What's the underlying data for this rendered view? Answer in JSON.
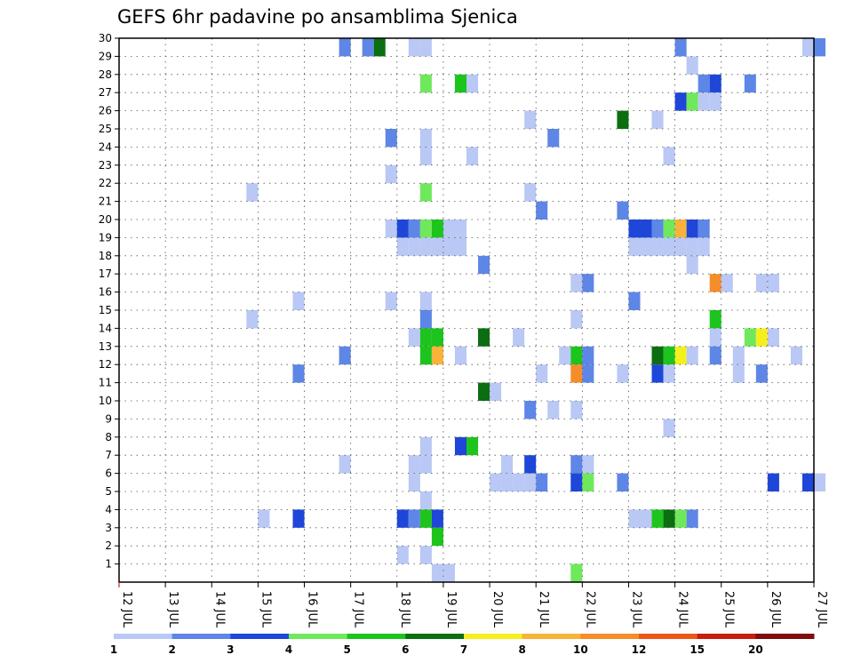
{
  "chart_data": {
    "type": "heatmap",
    "title": "GEFS 6hr padavine po ansamblima Sjenica",
    "x_tick_labels": [
      "12 JUL",
      "13 JUL",
      "14 JUL",
      "15 JUL",
      "16 JUL",
      "17 JUL",
      "18 JUL",
      "19 JUL",
      "20 JUL",
      "21 JUL",
      "22 JUL",
      "23 JUL",
      "24 JUL",
      "25 JUL",
      "26 JUL",
      "27 JUL"
    ],
    "y_tick_labels": [
      "1",
      "2",
      "3",
      "4",
      "5",
      "6",
      "7",
      "8",
      "9",
      "10",
      "11",
      "12",
      "13",
      "14",
      "15",
      "16",
      "17",
      "18",
      "19",
      "20",
      "21",
      "22",
      "23",
      "24",
      "25",
      "26",
      "27",
      "28",
      "29",
      "30"
    ],
    "xlim": [
      12,
      27
    ],
    "ylim": [
      0,
      30
    ],
    "grid": true,
    "legend": {
      "position": "bottom",
      "labels": [
        "1",
        "2",
        "3",
        "4",
        "5",
        "6",
        "7",
        "8",
        "10",
        "12",
        "15",
        "20"
      ],
      "colors": [
        "#b9c8f4",
        "#5e86e6",
        "#1e46d8",
        "#6fe85c",
        "#1dc41d",
        "#0b6e10",
        "#f4f01e",
        "#f7b33a",
        "#f58d2a",
        "#eb5716",
        "#c81c0c",
        "#7e0e0e"
      ]
    },
    "cells": [
      {
        "day": 16.75,
        "member": 30,
        "level": 2
      },
      {
        "day": 17.25,
        "member": 30,
        "level": 2
      },
      {
        "day": 17.5,
        "member": 30,
        "level": 6
      },
      {
        "day": 18.25,
        "member": 30,
        "level": 1
      },
      {
        "day": 18.5,
        "member": 30,
        "level": 1
      },
      {
        "day": 24,
        "member": 30,
        "level": 2
      },
      {
        "day": 26.75,
        "member": 30,
        "level": 1
      },
      {
        "day": 27,
        "member": 30,
        "level": 2
      },
      {
        "day": 24.25,
        "member": 29,
        "level": 1
      },
      {
        "day": 18.5,
        "member": 28,
        "level": 4
      },
      {
        "day": 19.25,
        "member": 28,
        "level": 5
      },
      {
        "day": 19.5,
        "member": 28,
        "level": 1
      },
      {
        "day": 24.5,
        "member": 28,
        "level": 2
      },
      {
        "day": 24.75,
        "member": 28,
        "level": 3
      },
      {
        "day": 25.5,
        "member": 28,
        "level": 2
      },
      {
        "day": 24,
        "member": 27,
        "level": 3
      },
      {
        "day": 24.25,
        "member": 27,
        "level": 4
      },
      {
        "day": 24.5,
        "member": 27,
        "level": 1
      },
      {
        "day": 24.75,
        "member": 27,
        "level": 1
      },
      {
        "day": 20.75,
        "member": 26,
        "level": 1
      },
      {
        "day": 22.75,
        "member": 26,
        "level": 6
      },
      {
        "day": 23.5,
        "member": 26,
        "level": 1
      },
      {
        "day": 17.75,
        "member": 25,
        "level": 2
      },
      {
        "day": 18.5,
        "member": 25,
        "level": 1
      },
      {
        "day": 21.25,
        "member": 25,
        "level": 2
      },
      {
        "day": 18.5,
        "member": 24,
        "level": 1
      },
      {
        "day": 19.5,
        "member": 24,
        "level": 1
      },
      {
        "day": 23.75,
        "member": 24,
        "level": 1
      },
      {
        "day": 17.75,
        "member": 23,
        "level": 1
      },
      {
        "day": 14.75,
        "member": 22,
        "level": 1
      },
      {
        "day": 18.5,
        "member": 22,
        "level": 4
      },
      {
        "day": 20.75,
        "member": 22,
        "level": 1
      },
      {
        "day": 21,
        "member": 21,
        "level": 2
      },
      {
        "day": 22.75,
        "member": 21,
        "level": 2
      },
      {
        "day": 17.75,
        "member": 20,
        "level": 1
      },
      {
        "day": 18,
        "member": 20,
        "level": 3
      },
      {
        "day": 18.25,
        "member": 20,
        "level": 2
      },
      {
        "day": 18.5,
        "member": 20,
        "level": 4
      },
      {
        "day": 18.75,
        "member": 20,
        "level": 5
      },
      {
        "day": 19,
        "member": 20,
        "level": 1
      },
      {
        "day": 19.25,
        "member": 20,
        "level": 1
      },
      {
        "day": 23,
        "member": 20,
        "level": 3
      },
      {
        "day": 23.25,
        "member": 20,
        "level": 3
      },
      {
        "day": 23.5,
        "member": 20,
        "level": 2
      },
      {
        "day": 23.75,
        "member": 20,
        "level": 4
      },
      {
        "day": 24,
        "member": 20,
        "level": 8
      },
      {
        "day": 24.25,
        "member": 20,
        "level": 3
      },
      {
        "day": 24.5,
        "member": 20,
        "level": 2
      },
      {
        "day": 18,
        "member": 19,
        "level": 1
      },
      {
        "day": 18.25,
        "member": 19,
        "level": 1
      },
      {
        "day": 18.5,
        "member": 19,
        "level": 1
      },
      {
        "day": 18.75,
        "member": 19,
        "level": 1
      },
      {
        "day": 19,
        "member": 19,
        "level": 1
      },
      {
        "day": 19.25,
        "member": 19,
        "level": 1
      },
      {
        "day": 23,
        "member": 19,
        "level": 1
      },
      {
        "day": 23.25,
        "member": 19,
        "level": 1
      },
      {
        "day": 23.5,
        "member": 19,
        "level": 1
      },
      {
        "day": 23.75,
        "member": 19,
        "level": 1
      },
      {
        "day": 24,
        "member": 19,
        "level": 1
      },
      {
        "day": 24.25,
        "member": 19,
        "level": 1
      },
      {
        "day": 24.5,
        "member": 19,
        "level": 1
      },
      {
        "day": 19.75,
        "member": 18,
        "level": 2
      },
      {
        "day": 24.25,
        "member": 18,
        "level": 1
      },
      {
        "day": 21.75,
        "member": 17,
        "level": 1
      },
      {
        "day": 22,
        "member": 17,
        "level": 2
      },
      {
        "day": 24.75,
        "member": 17,
        "level": 9
      },
      {
        "day": 25,
        "member": 17,
        "level": 1
      },
      {
        "day": 25.75,
        "member": 17,
        "level": 1
      },
      {
        "day": 26,
        "member": 17,
        "level": 1
      },
      {
        "day": 15.75,
        "member": 16,
        "level": 1
      },
      {
        "day": 17.75,
        "member": 16,
        "level": 1
      },
      {
        "day": 18.5,
        "member": 16,
        "level": 1
      },
      {
        "day": 23,
        "member": 16,
        "level": 2
      },
      {
        "day": 14.75,
        "member": 15,
        "level": 1
      },
      {
        "day": 18.5,
        "member": 15,
        "level": 2
      },
      {
        "day": 21.75,
        "member": 15,
        "level": 1
      },
      {
        "day": 24.75,
        "member": 15,
        "level": 5
      },
      {
        "day": 18.25,
        "member": 14,
        "level": 1
      },
      {
        "day": 18.5,
        "member": 14,
        "level": 5
      },
      {
        "day": 18.75,
        "member": 14,
        "level": 5
      },
      {
        "day": 19.75,
        "member": 14,
        "level": 6
      },
      {
        "day": 20.5,
        "member": 14,
        "level": 1
      },
      {
        "day": 24.75,
        "member": 14,
        "level": 1
      },
      {
        "day": 25.5,
        "member": 14,
        "level": 4
      },
      {
        "day": 25.75,
        "member": 14,
        "level": 7
      },
      {
        "day": 26,
        "member": 14,
        "level": 1
      },
      {
        "day": 16.75,
        "member": 13,
        "level": 2
      },
      {
        "day": 18.5,
        "member": 13,
        "level": 5
      },
      {
        "day": 18.75,
        "member": 13,
        "level": 8
      },
      {
        "day": 19.25,
        "member": 13,
        "level": 1
      },
      {
        "day": 21.5,
        "member": 13,
        "level": 1
      },
      {
        "day": 21.75,
        "member": 13,
        "level": 5
      },
      {
        "day": 22,
        "member": 13,
        "level": 2
      },
      {
        "day": 23.5,
        "member": 13,
        "level": 6
      },
      {
        "day": 23.75,
        "member": 13,
        "level": 5
      },
      {
        "day": 24,
        "member": 13,
        "level": 7
      },
      {
        "day": 24.25,
        "member": 13,
        "level": 1
      },
      {
        "day": 24.75,
        "member": 13,
        "level": 2
      },
      {
        "day": 25.25,
        "member": 13,
        "level": 1
      },
      {
        "day": 26.5,
        "member": 13,
        "level": 1
      },
      {
        "day": 15.75,
        "member": 12,
        "level": 2
      },
      {
        "day": 21,
        "member": 12,
        "level": 1
      },
      {
        "day": 21.75,
        "member": 12,
        "level": 9
      },
      {
        "day": 22,
        "member": 12,
        "level": 2
      },
      {
        "day": 22.75,
        "member": 12,
        "level": 1
      },
      {
        "day": 23.5,
        "member": 12,
        "level": 3
      },
      {
        "day": 23.75,
        "member": 12,
        "level": 1
      },
      {
        "day": 25.25,
        "member": 12,
        "level": 1
      },
      {
        "day": 25.75,
        "member": 12,
        "level": 2
      },
      {
        "day": 19.75,
        "member": 11,
        "level": 6
      },
      {
        "day": 20,
        "member": 11,
        "level": 1
      },
      {
        "day": 20.75,
        "member": 10,
        "level": 2
      },
      {
        "day": 21.25,
        "member": 10,
        "level": 1
      },
      {
        "day": 21.75,
        "member": 10,
        "level": 1
      },
      {
        "day": 23.75,
        "member": 9,
        "level": 1
      },
      {
        "day": 18.5,
        "member": 8,
        "level": 1
      },
      {
        "day": 19.25,
        "member": 8,
        "level": 3
      },
      {
        "day": 19.5,
        "member": 8,
        "level": 5
      },
      {
        "day": 16.75,
        "member": 7,
        "level": 1
      },
      {
        "day": 18.25,
        "member": 7,
        "level": 1
      },
      {
        "day": 18.5,
        "member": 7,
        "level": 1
      },
      {
        "day": 20.25,
        "member": 7,
        "level": 1
      },
      {
        "day": 20.75,
        "member": 7,
        "level": 3
      },
      {
        "day": 21.75,
        "member": 7,
        "level": 2
      },
      {
        "day": 22,
        "member": 7,
        "level": 1
      },
      {
        "day": 18.25,
        "member": 6,
        "level": 1
      },
      {
        "day": 20,
        "member": 6,
        "level": 1
      },
      {
        "day": 20.25,
        "member": 6,
        "level": 1
      },
      {
        "day": 20.5,
        "member": 6,
        "level": 1
      },
      {
        "day": 20.75,
        "member": 6,
        "level": 1
      },
      {
        "day": 21,
        "member": 6,
        "level": 2
      },
      {
        "day": 21.75,
        "member": 6,
        "level": 3
      },
      {
        "day": 22,
        "member": 6,
        "level": 4
      },
      {
        "day": 22.75,
        "member": 6,
        "level": 2
      },
      {
        "day": 26,
        "member": 6,
        "level": 3
      },
      {
        "day": 26.75,
        "member": 6,
        "level": 3
      },
      {
        "day": 27,
        "member": 6,
        "level": 1
      },
      {
        "day": 18.5,
        "member": 5,
        "level": 1
      },
      {
        "day": 15,
        "member": 4,
        "level": 1
      },
      {
        "day": 15.75,
        "member": 4,
        "level": 3
      },
      {
        "day": 18,
        "member": 4,
        "level": 3
      },
      {
        "day": 18.25,
        "member": 4,
        "level": 2
      },
      {
        "day": 18.5,
        "member": 4,
        "level": 5
      },
      {
        "day": 18.75,
        "member": 4,
        "level": 3
      },
      {
        "day": 23,
        "member": 4,
        "level": 1
      },
      {
        "day": 23.25,
        "member": 4,
        "level": 1
      },
      {
        "day": 23.5,
        "member": 4,
        "level": 5
      },
      {
        "day": 23.75,
        "member": 4,
        "level": 6
      },
      {
        "day": 24,
        "member": 4,
        "level": 4
      },
      {
        "day": 24.25,
        "member": 4,
        "level": 2
      },
      {
        "day": 18.75,
        "member": 3,
        "level": 5
      },
      {
        "day": 18,
        "member": 2,
        "level": 1
      },
      {
        "day": 18.5,
        "member": 2,
        "level": 1
      },
      {
        "day": 18.75,
        "member": 1,
        "level": 1
      },
      {
        "day": 19,
        "member": 1,
        "level": 1
      },
      {
        "day": 21.75,
        "member": 1,
        "level": 4
      }
    ]
  }
}
